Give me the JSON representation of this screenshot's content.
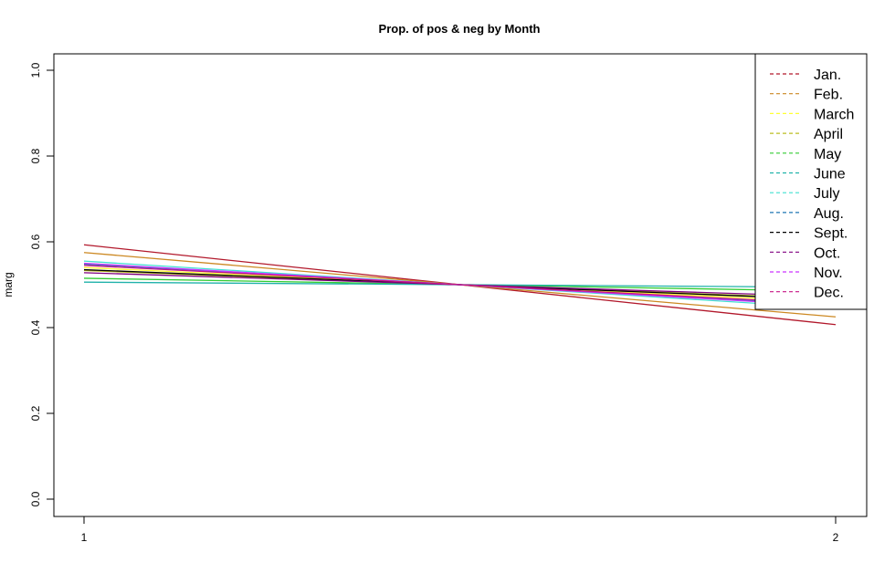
{
  "chart_data": {
    "type": "line",
    "title": "Prop. of pos & neg by Month",
    "xlabel": "",
    "ylabel": "marg",
    "x": [
      1,
      2
    ],
    "x_ticks": [
      "1",
      "2"
    ],
    "y_ticks": [
      "0.0",
      "0.2",
      "0.4",
      "0.6",
      "0.8",
      "1.0"
    ],
    "ylim": [
      0,
      1
    ],
    "grid": false,
    "legend_position": "top-right",
    "series": [
      {
        "name": "Jan.",
        "color": "#b2182b",
        "values": [
          0.593,
          0.407
        ]
      },
      {
        "name": "Feb.",
        "color": "#cc8822",
        "values": [
          0.575,
          0.425
        ]
      },
      {
        "name": "March",
        "color": "#ffff33",
        "values": [
          0.54,
          0.46
        ]
      },
      {
        "name": "April",
        "color": "#bcbd22",
        "values": [
          0.533,
          0.467
        ]
      },
      {
        "name": "May",
        "color": "#33cc33",
        "values": [
          0.515,
          0.485
        ]
      },
      {
        "name": "June",
        "color": "#20b2aa",
        "values": [
          0.506,
          0.494
        ]
      },
      {
        "name": "July",
        "color": "#40e0d0",
        "values": [
          0.555,
          0.445
        ]
      },
      {
        "name": "Aug.",
        "color": "#1f77b4",
        "values": [
          0.548,
          0.452
        ]
      },
      {
        "name": "Sept.",
        "color": "#000000",
        "values": [
          0.535,
          0.465
        ]
      },
      {
        "name": "Oct.",
        "color": "#800080",
        "values": [
          0.528,
          0.472
        ]
      },
      {
        "name": "Nov.",
        "color": "#cc33ff",
        "values": [
          0.55,
          0.45
        ]
      },
      {
        "name": "Dec.",
        "color": "#c71585",
        "values": [
          0.545,
          0.455
        ]
      }
    ]
  }
}
